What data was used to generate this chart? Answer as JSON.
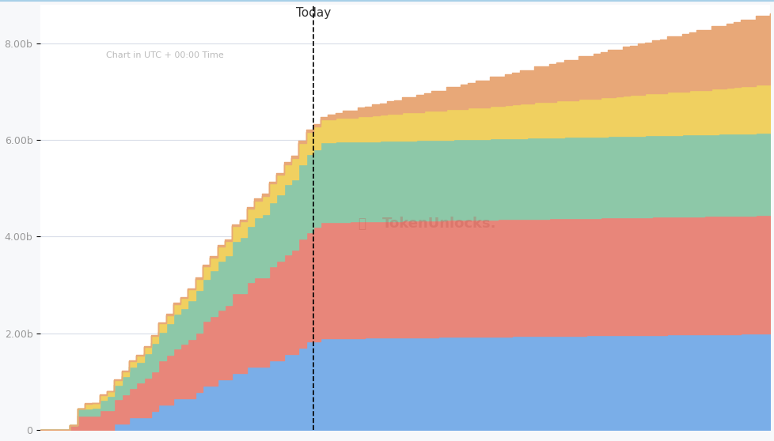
{
  "subtitle": "Chart in UTC + 00:00 Time",
  "today_label": "Today",
  "ylim": [
    0,
    8800000000.0
  ],
  "yticks": [
    0,
    2000000000.0,
    4000000000.0,
    6000000000.0,
    8000000000.0
  ],
  "ytick_labels": [
    "0",
    "2.00b",
    "4.00b",
    "6.00b",
    "8.00b"
  ],
  "background_color": "#f7f8fa",
  "plot_bg_color": "#ffffff",
  "colors": {
    "blue": "#7aaee8",
    "red": "#e8867a",
    "green": "#8dc8a8",
    "yellow": "#f0d060",
    "orange": "#e8a878"
  },
  "watermark": "TokenUnlocks.",
  "watermark_color": "#c0534a",
  "grid_color": "#d8dde8",
  "n_steps": 100,
  "today_step": 37
}
